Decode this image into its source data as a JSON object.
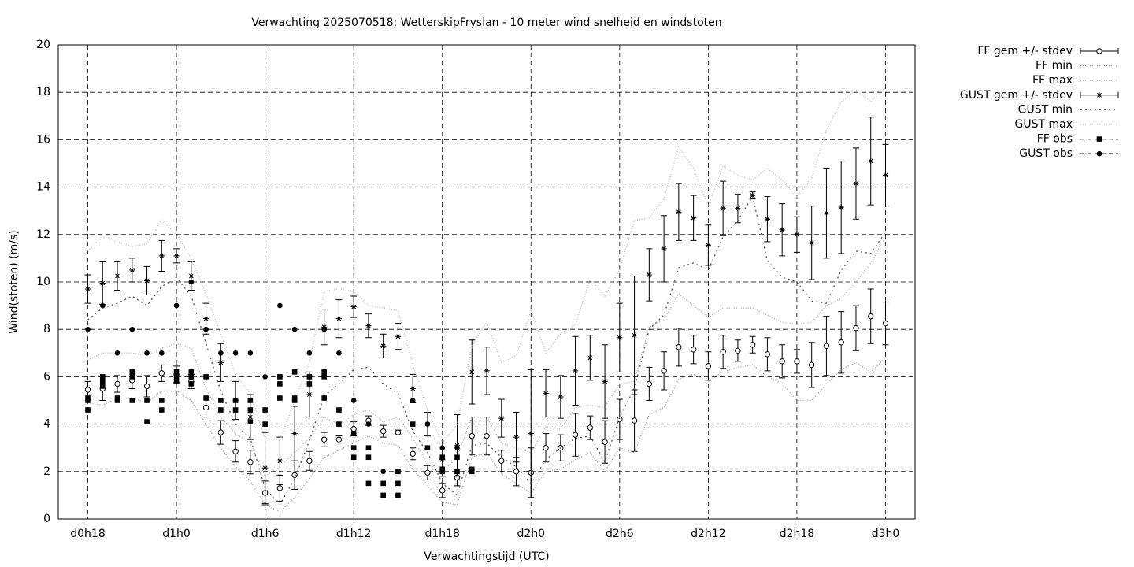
{
  "chart_data": {
    "type": "errorbar",
    "title": "Verwachting 2025070518: WetterskipFryslan - 10 meter wind snelheid en windstoten",
    "x_label": "Verwachtingstijd (UTC)",
    "y_label": "Wind(stoten) (m/s)",
    "xlim": [
      16,
      74
    ],
    "ylim": [
      0,
      20
    ],
    "xticks": [
      {
        "value": 18,
        "label": "d0h18"
      },
      {
        "value": 24,
        "label": "d1h0"
      },
      {
        "value": 30,
        "label": "d1h6"
      },
      {
        "value": 36,
        "label": "d1h12"
      },
      {
        "value": 42,
        "label": "d1h18"
      },
      {
        "value": 48,
        "label": "d2h0"
      },
      {
        "value": 54,
        "label": "d2h6"
      },
      {
        "value": 60,
        "label": "d2h12"
      },
      {
        "value": 66,
        "label": "d2h18"
      },
      {
        "value": 72,
        "label": "d3h0"
      }
    ],
    "yticks": [
      0,
      2,
      4,
      6,
      8,
      10,
      12,
      14,
      16,
      18,
      20
    ],
    "grid": true,
    "legend": "outside-right",
    "x": [
      18,
      19,
      20,
      21,
      22,
      23,
      24,
      25,
      26,
      27,
      28,
      29,
      30,
      31,
      32,
      33,
      34,
      35,
      36,
      37,
      38,
      39,
      40,
      41,
      42,
      43,
      44,
      45,
      46,
      47,
      48,
      49,
      50,
      51,
      52,
      53,
      54,
      55,
      56,
      57,
      58,
      59,
      60,
      61,
      62,
      63,
      64,
      65,
      66,
      67,
      68,
      69,
      70,
      71,
      72
    ],
    "series": [
      {
        "name": "FF gem +/- stdev",
        "color": "#000000",
        "style": "errorbar",
        "marker": "circle",
        "values": [
          5.45,
          5.5,
          5.7,
          5.85,
          5.6,
          6.15,
          6.1,
          5.8,
          4.7,
          3.65,
          2.85,
          2.4,
          1.1,
          1.3,
          1.85,
          2.45,
          3.35,
          3.35,
          3.8,
          4.15,
          3.7,
          3.65,
          2.75,
          1.95,
          1.2,
          1.75,
          3.5,
          3.5,
          2.45,
          2.0,
          1.95,
          3.0,
          3.0,
          3.55,
          3.85,
          3.25,
          4.2,
          4.15,
          5.7,
          6.25,
          7.25,
          7.15,
          6.45,
          7.05,
          7.1,
          7.35,
          6.95,
          6.65,
          6.65,
          6.5,
          7.3,
          7.45,
          8.05,
          8.55,
          8.25
        ],
        "errors": [
          0.35,
          0.5,
          0.35,
          0.35,
          0.45,
          0.35,
          0.35,
          0.3,
          0.4,
          0.5,
          0.45,
          0.5,
          0.5,
          0.55,
          0.6,
          0.4,
          0.3,
          0.15,
          0.3,
          0.2,
          0.25,
          0.1,
          0.25,
          0.3,
          0.3,
          0.35,
          0.8,
          0.8,
          0.45,
          0.6,
          1.05,
          0.6,
          0.55,
          0.9,
          0.5,
          0.9,
          0.85,
          1.3,
          0.7,
          0.8,
          0.8,
          0.6,
          0.6,
          0.7,
          0.45,
          0.35,
          0.7,
          0.7,
          0.5,
          0.95,
          1.25,
          1.3,
          0.95,
          1.15,
          0.9
        ]
      },
      {
        "name": "FF min",
        "color": "#999999",
        "style": "line",
        "dash": "1,2",
        "values": [
          4.9,
          4.8,
          5.1,
          5.1,
          4.9,
          5.4,
          5.4,
          5.0,
          4.0,
          3.0,
          2.2,
          1.6,
          0.6,
          0.3,
          0.9,
          1.7,
          2.6,
          2.9,
          3.2,
          3.5,
          3.2,
          3.1,
          2.1,
          1.4,
          0.7,
          0.6,
          2.6,
          2.8,
          1.9,
          1.5,
          1.1,
          2.0,
          2.1,
          2.5,
          2.8,
          2.0,
          3.0,
          2.8,
          4.4,
          4.7,
          5.9,
          6.1,
          5.8,
          6.2,
          6.4,
          6.5,
          6.0,
          5.7,
          5.0,
          5.0,
          5.7,
          6.3,
          6.6,
          6.2,
          6.8
        ]
      },
      {
        "name": "FF max",
        "color": "#aaaaaa",
        "style": "line",
        "dash": "1,2",
        "values": [
          6.7,
          7.0,
          7.0,
          7.0,
          6.9,
          7.2,
          7.4,
          7.2,
          5.5,
          4.3,
          3.6,
          3.2,
          1.8,
          2.2,
          2.8,
          3.4,
          4.3,
          4.0,
          4.4,
          4.6,
          4.1,
          4.3,
          3.4,
          2.3,
          2.0,
          2.6,
          4.3,
          4.3,
          3.2,
          3.0,
          2.8,
          3.9,
          3.8,
          4.7,
          4.8,
          4.7,
          5.7,
          5.8,
          8.1,
          8.4,
          9.5,
          9.0,
          8.5,
          8.9,
          8.9,
          8.9,
          8.6,
          8.3,
          8.2,
          8.3,
          9.0,
          9.3,
          10.0,
          10.8,
          11.9
        ]
      },
      {
        "name": "GUST gem +/- stdev",
        "color": "#000000",
        "style": "errorbar",
        "marker": "star",
        "values": [
          9.7,
          9.95,
          10.25,
          10.5,
          10.05,
          11.1,
          11.1,
          10.25,
          8.45,
          6.6,
          5.0,
          4.3,
          2.15,
          2.45,
          3.6,
          5.25,
          8.1,
          8.45,
          8.95,
          8.15,
          7.3,
          7.7,
          5.5,
          4.0,
          2.5,
          3.1,
          6.2,
          6.25,
          4.25,
          3.45,
          3.6,
          5.3,
          5.15,
          6.25,
          6.8,
          5.8,
          7.65,
          7.75,
          10.3,
          11.4,
          12.95,
          12.7,
          11.55,
          13.1,
          13.1,
          13.65,
          12.65,
          12.2,
          12.0,
          11.65,
          12.9,
          13.15,
          14.15,
          15.1,
          14.5
        ],
        "errors": [
          0.6,
          0.9,
          0.6,
          0.5,
          0.6,
          0.65,
          0.3,
          0.6,
          0.65,
          0.8,
          0.8,
          0.95,
          1.5,
          1.0,
          1.15,
          0.95,
          0.75,
          0.8,
          0.45,
          0.5,
          0.5,
          0.55,
          0.6,
          0.5,
          0.7,
          1.3,
          1.35,
          1.0,
          0.8,
          1.05,
          2.7,
          1.0,
          0.9,
          1.45,
          0.95,
          1.55,
          1.45,
          2.5,
          1.1,
          1.4,
          1.2,
          0.95,
          0.85,
          1.15,
          0.6,
          0.15,
          0.95,
          1.1,
          0.75,
          1.55,
          1.9,
          1.95,
          1.5,
          1.85,
          1.3
        ]
      },
      {
        "name": "GUST min",
        "color": "#555555",
        "style": "line",
        "dash": "2,4",
        "values": [
          8.4,
          8.9,
          9.1,
          9.4,
          9.0,
          9.8,
          10.2,
          9.4,
          7.4,
          5.4,
          4.0,
          3.4,
          1.3,
          0.6,
          1.7,
          3.3,
          5.2,
          5.7,
          6.3,
          6.4,
          5.7,
          5.3,
          3.7,
          2.8,
          1.5,
          1.0,
          3.1,
          3.2,
          2.6,
          2.2,
          1.5,
          2.5,
          3.0,
          3.4,
          3.5,
          2.4,
          4.3,
          5.5,
          8.0,
          8.6,
          10.6,
          10.8,
          10.5,
          11.9,
          12.6,
          13.6,
          10.9,
          10.2,
          10.0,
          9.2,
          9.1,
          10.5,
          11.3,
          11.2,
          12.1
        ]
      },
      {
        "name": "GUST max",
        "color": "#bbbbbb",
        "style": "line",
        "dash": "1,2",
        "values": [
          11.3,
          11.9,
          11.7,
          11.5,
          11.6,
          12.6,
          12.0,
          11.0,
          9.5,
          7.8,
          6.1,
          5.3,
          3.4,
          3.3,
          5.0,
          6.6,
          9.6,
          9.7,
          9.6,
          9.0,
          8.9,
          8.8,
          6.5,
          4.6,
          3.2,
          4.0,
          7.3,
          8.3,
          6.6,
          6.9,
          8.8,
          7.0,
          7.8,
          8.2,
          10.1,
          9.4,
          10.5,
          12.6,
          12.7,
          13.5,
          15.7,
          14.8,
          13.2,
          14.9,
          14.5,
          14.3,
          14.8,
          14.3,
          13.6,
          14.4,
          16.4,
          17.6,
          18.1,
          17.6,
          18.2
        ]
      },
      {
        "name": "FF obs",
        "color": "#000000",
        "style": "points",
        "marker": "square",
        "x": [
          18,
          18,
          18,
          19,
          19,
          19,
          20,
          20,
          21,
          21,
          21,
          22,
          22,
          23,
          23,
          24,
          24,
          24,
          25,
          25,
          25,
          26,
          26,
          27,
          27,
          28,
          28,
          29,
          29,
          29,
          30,
          30,
          31,
          31,
          31,
          32,
          32,
          32,
          33,
          33,
          34,
          34,
          34,
          35,
          35,
          36,
          36,
          36,
          37,
          37,
          37,
          38,
          38,
          39,
          39,
          39,
          40,
          41,
          42,
          42,
          42,
          43,
          43,
          44,
          44
        ],
        "values": [
          4.6,
          5.0,
          5.1,
          5.6,
          5.8,
          6.0,
          5.0,
          5.1,
          5.0,
          6.2,
          6.0,
          4.1,
          5.0,
          4.6,
          5.0,
          5.8,
          6.0,
          6.2,
          5.7,
          6.0,
          6.2,
          5.1,
          6.0,
          4.6,
          5.0,
          4.6,
          5.0,
          4.1,
          4.6,
          5.0,
          4.0,
          4.6,
          5.1,
          5.7,
          6.0,
          5.0,
          5.1,
          6.2,
          5.7,
          6.0,
          5.1,
          6.0,
          6.2,
          4.0,
          4.6,
          2.6,
          3.0,
          3.6,
          1.5,
          2.6,
          3.0,
          1.0,
          1.5,
          1.0,
          1.5,
          2.0,
          4.0,
          3.0,
          2.0,
          2.1,
          2.6,
          2.0,
          2.6,
          2.0,
          2.1
        ]
      },
      {
        "name": "GUST obs",
        "color": "#000000",
        "style": "points",
        "marker": "dot",
        "x": [
          18,
          19,
          20,
          21,
          22,
          23,
          24,
          25,
          26,
          27,
          28,
          29,
          30,
          31,
          32,
          33,
          34,
          35,
          36,
          37,
          38,
          39,
          40,
          41,
          42,
          43
        ],
        "values": [
          8,
          9,
          7,
          8,
          7,
          7,
          9,
          10,
          8,
          7,
          7,
          7,
          6,
          9,
          8,
          7,
          8,
          7,
          5,
          4,
          2,
          2,
          5,
          4,
          3,
          3
        ]
      }
    ]
  }
}
